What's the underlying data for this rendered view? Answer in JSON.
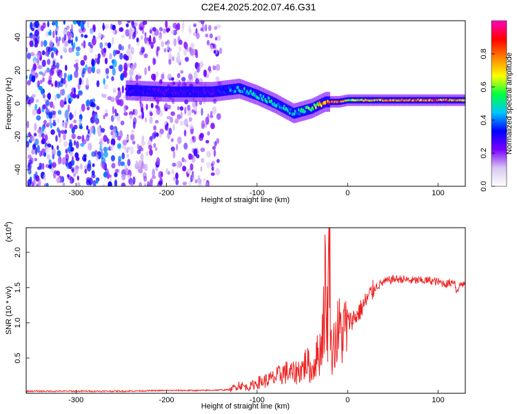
{
  "title": "C2E4.2025.202.07.46.G31",
  "chart_data": [
    {
      "type": "heatmap",
      "xlabel": "Height of straight line (km)",
      "ylabel": "Frequency (Hz)",
      "xlim": [
        -355,
        130
      ],
      "ylim": [
        -50,
        50
      ],
      "xticks": [
        -300,
        -200,
        -100,
        0,
        100
      ],
      "yticks": [
        -40,
        -20,
        0,
        20,
        40
      ],
      "colorbar": {
        "label": "Normalized spectral amplitude",
        "range": [
          0.0,
          1.0
        ],
        "ticks": [
          0.0,
          0.2,
          0.4,
          0.6,
          0.8
        ],
        "tick_labels": [
          "0.0",
          "0.2",
          "0.4",
          "0.6",
          "0.8"
        ],
        "colormap": [
          "#ffffff",
          "#d8c6f0",
          "#7a00ff",
          "#0000ff",
          "#00c8ff",
          "#00ff40",
          "#ffff00",
          "#ff8000",
          "#ff0000",
          "#ff00c0"
        ]
      },
      "signal_ridge": {
        "x": [
          -245,
          -200,
          -150,
          -120,
          -100,
          -80,
          -60,
          -40,
          -25,
          -10,
          0,
          50,
          100,
          130
        ],
        "y": [
          8,
          7,
          7,
          9,
          5,
          0,
          -6,
          -3,
          1,
          1,
          2,
          2,
          2,
          2
        ],
        "amplitude": [
          0.3,
          0.3,
          0.3,
          0.45,
          0.5,
          0.5,
          0.45,
          0.6,
          0.85,
          0.9,
          0.7,
          0.8,
          0.9,
          0.7
        ]
      },
      "noise_region": {
        "x": [
          -355,
          -140
        ],
        "y": [
          -50,
          50
        ],
        "amplitude": [
          0.0,
          0.35
        ]
      }
    },
    {
      "type": "line",
      "ylabel": "SNR (10 * v/v)",
      "yscale_label": "(x10",
      "yscale_exp": "4",
      "xlabel": "Height of straight line (km)",
      "xlim": [
        -355,
        130
      ],
      "ylim": [
        0,
        2.35
      ],
      "xticks": [
        -300,
        -200,
        -100,
        0,
        100
      ],
      "yticks": [
        0.5,
        1.0,
        1.5,
        2.0
      ],
      "ytick_labels": [
        "0.5",
        "1.0",
        "1.5",
        "2.0"
      ],
      "color": "#ee2222",
      "series": [
        {
          "x": [
            -355,
            -300,
            -250,
            -200,
            -160,
            -130,
            -120,
            -110,
            -100,
            -90,
            -80,
            -70,
            -60,
            -50,
            -45,
            -40,
            -35,
            -30,
            -27,
            -25,
            -22,
            -20,
            -18,
            -15,
            -10,
            -5,
            0,
            5,
            10,
            15,
            20,
            25,
            30,
            40,
            50,
            60,
            70,
            80,
            90,
            100,
            110,
            118,
            120,
            125,
            130
          ],
          "y": [
            0.03,
            0.03,
            0.03,
            0.04,
            0.04,
            0.05,
            0.12,
            0.08,
            0.15,
            0.18,
            0.22,
            0.3,
            0.28,
            0.35,
            0.45,
            0.3,
            0.5,
            0.6,
            1.0,
            1.5,
            1.0,
            2.3,
            0.6,
            0.7,
            0.9,
            0.85,
            1.0,
            1.05,
            1.1,
            1.2,
            1.3,
            1.4,
            1.5,
            1.58,
            1.62,
            1.62,
            1.6,
            1.6,
            1.6,
            1.58,
            1.55,
            1.6,
            1.45,
            1.55,
            1.55
          ]
        }
      ]
    }
  ]
}
